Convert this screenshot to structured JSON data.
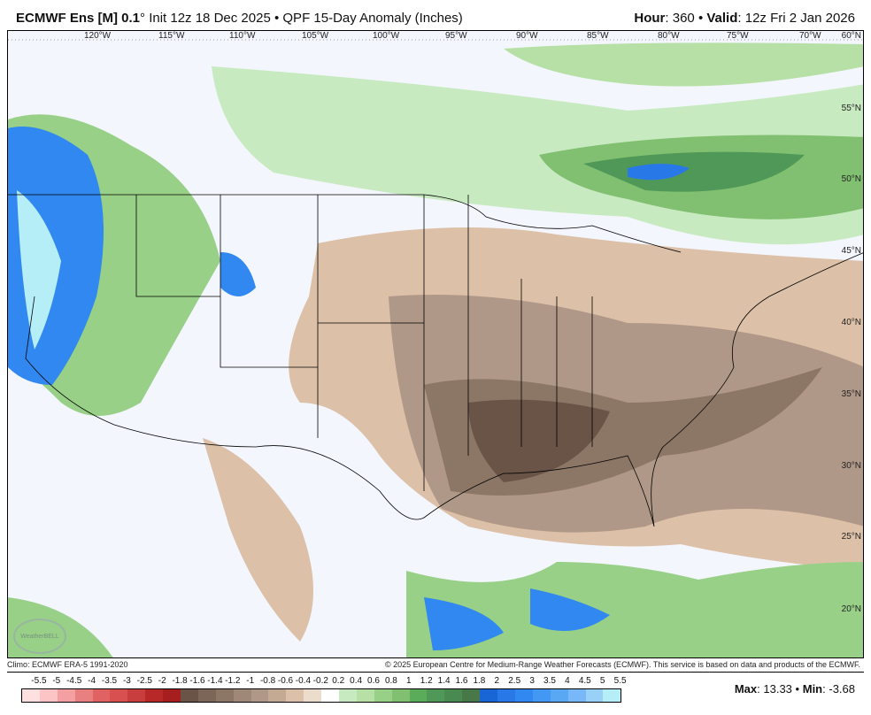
{
  "header": {
    "model": "ECMWF Ens [M] 0.1",
    "deg": "°",
    "init": "Init 12z 18 Dec 2025",
    "sep": "•",
    "product": "QPF 15-Day Anomaly (Inches)",
    "hour_label": "Hour",
    "hour": "360",
    "valid_label": "Valid",
    "valid": "12z Fri 2 Jan 2026"
  },
  "map": {
    "lon_labels": [
      "120°W",
      "115°W",
      "110°W",
      "105°W",
      "100°W",
      "95°W",
      "90°W",
      "85°W",
      "80°W",
      "75°W",
      "70°W"
    ],
    "lat_labels": [
      "60°N",
      "55°N",
      "50°N",
      "45°N",
      "40°N",
      "35°N",
      "30°N",
      "25°N",
      "20°N"
    ],
    "logo_text": "WeatherBELL"
  },
  "footer": {
    "climo": "Climo: ECMWF ERA-5 1991-2020",
    "copyright": "© 2025 European Centre for Medium-Range Weather Forecasts (ECMWF). This service is based on data and products of the ECMWF."
  },
  "colorbar": {
    "labels": [
      "-5.5",
      "-5",
      "-4.5",
      "-4",
      "-3.5",
      "-3",
      "-2.5",
      "-2",
      "-1.8",
      "-1.6",
      "-1.4",
      "-1.2",
      "-1",
      "-0.8",
      "-0.6",
      "-0.4",
      "-0.2",
      "0.2",
      "0.4",
      "0.6",
      "0.8",
      "1",
      "1.2",
      "1.4",
      "1.6",
      "1.8",
      "2",
      "2.5",
      "3",
      "3.5",
      "4",
      "4.5",
      "5",
      "5.5"
    ],
    "colors": [
      "#ffe0e0",
      "#fcc4c4",
      "#f4a0a0",
      "#e88080",
      "#e06262",
      "#d85050",
      "#c83e3e",
      "#b82828",
      "#a61e1e",
      "#6a5448",
      "#7c6658",
      "#8c7666",
      "#a08878",
      "#b09888",
      "#c4aa92",
      "#dcc0a8",
      "#ecdccc",
      "#ffffff",
      "#c8eac0",
      "#b6e0a6",
      "#98d088",
      "#80c070",
      "#5aac5a",
      "#509858",
      "#488a50",
      "#487848",
      "#1866d6",
      "#2878e8",
      "#3088f0",
      "#4298f2",
      "#58a8f4",
      "#78b8f8",
      "#98d0f8",
      "#b6eef8"
    ]
  },
  "stats": {
    "max_label": "Max",
    "max": "13.33",
    "sep": "•",
    "min_label": "Min",
    "min": "-3.68"
  }
}
